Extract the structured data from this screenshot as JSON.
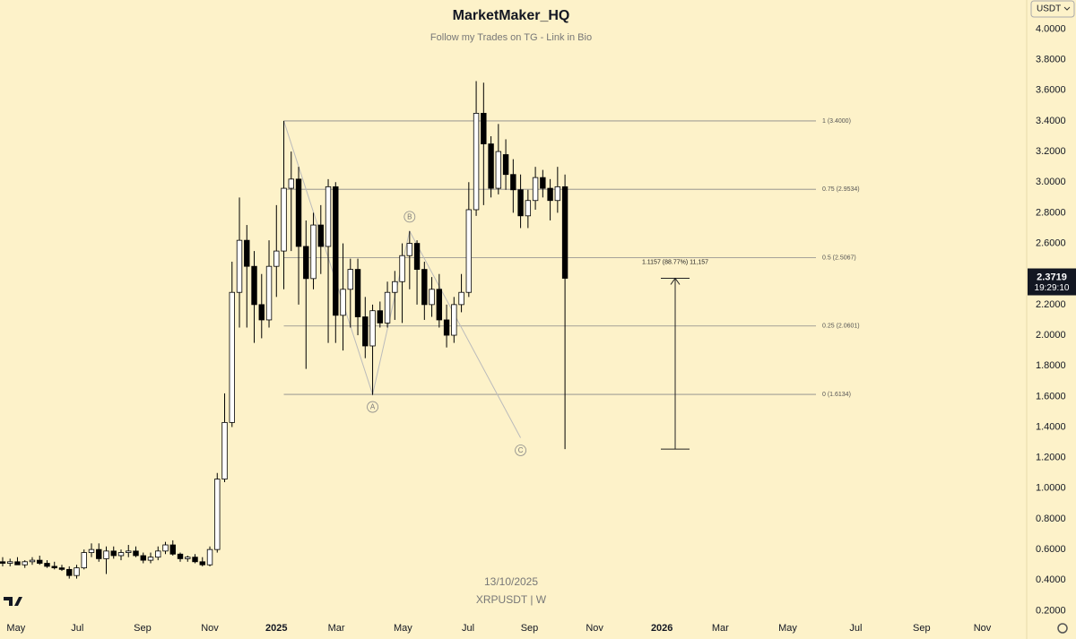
{
  "title": "MarketMaker_HQ",
  "subtitle": "Follow my Trades on TG - Link in Bio",
  "currency": "USDT",
  "countdown": "19:29:10",
  "chart_data": {
    "type": "candlestick",
    "symbol": "XRPUSDT | W",
    "date": "13/10/2025",
    "up_color": "#ffffff",
    "down_color": "#000000",
    "open": [
      0.52,
      0.51,
      0.52,
      0.5,
      0.52,
      0.53,
      0.51,
      0.49,
      0.48,
      0.47,
      0.43,
      0.48,
      0.58,
      0.6,
      0.54,
      0.59,
      0.56,
      0.58,
      0.59,
      0.56,
      0.53,
      0.55,
      0.59,
      0.63,
      0.57,
      0.54,
      0.55,
      0.52,
      0.5,
      0.6,
      1.06,
      1.43,
      2.28,
      2.62,
      2.45,
      2.2,
      2.1,
      2.45,
      2.55,
      2.96,
      3.02,
      2.58,
      2.37,
      2.72,
      2.58,
      2.97,
      2.13,
      2.3,
      2.43,
      2.12,
      1.93,
      2.16,
      2.08,
      2.28,
      2.35,
      2.52,
      2.6,
      2.43,
      2.2,
      2.3,
      2.1,
      2.0,
      2.2,
      2.28,
      2.82,
      3.45,
      3.25,
      2.96,
      3.18,
      3.05,
      2.95,
      2.78,
      2.88,
      3.03,
      2.96,
      2.88,
      2.97
    ],
    "high": [
      0.55,
      0.54,
      0.55,
      0.53,
      0.55,
      0.56,
      0.53,
      0.52,
      0.5,
      0.49,
      0.5,
      0.6,
      0.64,
      0.64,
      0.62,
      0.62,
      0.6,
      0.63,
      0.62,
      0.58,
      0.58,
      0.62,
      0.65,
      0.66,
      0.58,
      0.56,
      0.57,
      0.55,
      0.62,
      1.1,
      1.62,
      2.48,
      2.9,
      2.72,
      2.55,
      2.4,
      2.62,
      2.85,
      3.4,
      3.2,
      3.1,
      2.75,
      2.8,
      2.85,
      3.02,
      3.0,
      2.6,
      2.5,
      2.5,
      2.25,
      2.2,
      2.22,
      2.35,
      2.42,
      2.6,
      2.68,
      2.62,
      2.48,
      2.38,
      2.4,
      2.2,
      2.25,
      2.4,
      3.0,
      3.66,
      3.65,
      3.3,
      3.38,
      3.28,
      3.15,
      3.05,
      2.95,
      3.1,
      3.08,
      3.02,
      3.1,
      3.05
    ],
    "low": [
      0.49,
      0.49,
      0.5,
      0.48,
      0.5,
      0.5,
      0.48,
      0.47,
      0.46,
      0.41,
      0.41,
      0.47,
      0.55,
      0.52,
      0.44,
      0.54,
      0.53,
      0.55,
      0.55,
      0.51,
      0.51,
      0.53,
      0.57,
      0.56,
      0.52,
      0.52,
      0.51,
      0.49,
      0.49,
      0.58,
      1.04,
      1.4,
      2.05,
      2.05,
      1.95,
      1.98,
      2.05,
      2.25,
      2.3,
      2.55,
      2.2,
      1.78,
      2.3,
      2.4,
      1.95,
      1.95,
      1.9,
      2.05,
      2.0,
      1.85,
      1.61,
      2.05,
      2.05,
      2.1,
      2.08,
      2.3,
      2.2,
      2.1,
      2.12,
      2.05,
      1.92,
      1.95,
      2.15,
      2.25,
      2.78,
      2.85,
      2.9,
      2.92,
      2.95,
      2.8,
      2.7,
      2.7,
      2.82,
      2.9,
      2.75,
      2.8,
      1.2562
    ],
    "close": [
      0.51,
      0.52,
      0.5,
      0.52,
      0.53,
      0.51,
      0.49,
      0.48,
      0.47,
      0.43,
      0.48,
      0.58,
      0.6,
      0.54,
      0.59,
      0.56,
      0.58,
      0.59,
      0.56,
      0.53,
      0.55,
      0.59,
      0.63,
      0.57,
      0.54,
      0.55,
      0.52,
      0.5,
      0.6,
      1.06,
      1.43,
      2.28,
      2.62,
      2.45,
      2.2,
      2.1,
      2.45,
      2.55,
      2.96,
      3.02,
      2.58,
      2.37,
      2.72,
      2.58,
      2.97,
      2.13,
      2.3,
      2.43,
      2.12,
      1.93,
      2.16,
      2.08,
      2.28,
      2.35,
      2.52,
      2.6,
      2.43,
      2.2,
      2.3,
      2.1,
      2.0,
      2.2,
      2.28,
      2.82,
      3.45,
      3.25,
      2.96,
      3.2,
      3.05,
      2.95,
      2.78,
      2.88,
      3.03,
      2.96,
      2.88,
      2.97,
      2.3719
    ],
    "xlim": [
      -0.36,
      138.4
    ],
    "xticks": [
      {
        "value": 1.8,
        "label": "May"
      },
      {
        "value": 10.1,
        "label": "Jul"
      },
      {
        "value": 18.9,
        "label": "Sep"
      },
      {
        "value": 28,
        "label": "Nov"
      },
      {
        "value": 37,
        "label": "2025"
      },
      {
        "value": 45.1,
        "label": "Mar"
      },
      {
        "value": 54.1,
        "label": "May"
      },
      {
        "value": 62.9,
        "label": "Jul"
      },
      {
        "value": 71.2,
        "label": "Sep"
      },
      {
        "value": 80,
        "label": "Nov"
      },
      {
        "value": 89.1,
        "label": "2026"
      },
      {
        "value": 97,
        "label": "Mar"
      },
      {
        "value": 106.1,
        "label": "May"
      },
      {
        "value": 115.3,
        "label": "Jul"
      },
      {
        "value": 124.2,
        "label": "Sep"
      },
      {
        "value": 132.4,
        "label": "Nov"
      }
    ],
    "ylim": [
      0.15,
      4.19
    ],
    "yticks": [
      {
        "value": 0.2,
        "label": "0.2000"
      },
      {
        "value": 0.4,
        "label": "0.4000"
      },
      {
        "value": 0.6,
        "label": "0.6000"
      },
      {
        "value": 0.8,
        "label": "0.8000"
      },
      {
        "value": 1.0,
        "label": "1.0000"
      },
      {
        "value": 1.2,
        "label": "1.2000"
      },
      {
        "value": 1.4,
        "label": "1.4000"
      },
      {
        "value": 1.6,
        "label": "1.6000"
      },
      {
        "value": 1.8,
        "label": "1.8000"
      },
      {
        "value": 2.0,
        "label": "2.0000"
      },
      {
        "value": 2.2,
        "label": "2.2000"
      },
      {
        "value": 2.4,
        "label": "2.4000"
      },
      {
        "value": 2.6,
        "label": "2.6000"
      },
      {
        "value": 2.8,
        "label": "2.8000"
      },
      {
        "value": 3.0,
        "label": "3.0000"
      },
      {
        "value": 3.2,
        "label": "3.2000"
      },
      {
        "value": 3.4,
        "label": "3.4000"
      },
      {
        "value": 3.6,
        "label": "3.6000"
      },
      {
        "value": 3.8,
        "label": "3.8000"
      },
      {
        "value": 4.0,
        "label": "4.0000"
      }
    ],
    "fib_levels": [
      {
        "value": 3.4,
        "label": "1 (3.4000)"
      },
      {
        "value": 2.9534,
        "label": "0.75 (2.9534)"
      },
      {
        "value": 2.5067,
        "label": "0.5 (2.5067)"
      },
      {
        "value": 2.0601,
        "label": "0.25 (2.0601)"
      },
      {
        "value": 1.6134,
        "label": "0 (1.6134)"
      }
    ],
    "fib_start": 38,
    "measure": {
      "label": "1.1157 (88.77%) 11,157",
      "from": 2.3719,
      "to": 1.2562
    },
    "wave": {
      "x": [
        38,
        50,
        55,
        70
      ],
      "y": [
        3.4,
        1.6134,
        2.68,
        1.33
      ],
      "labels": [
        "A",
        "B",
        "C"
      ]
    }
  }
}
